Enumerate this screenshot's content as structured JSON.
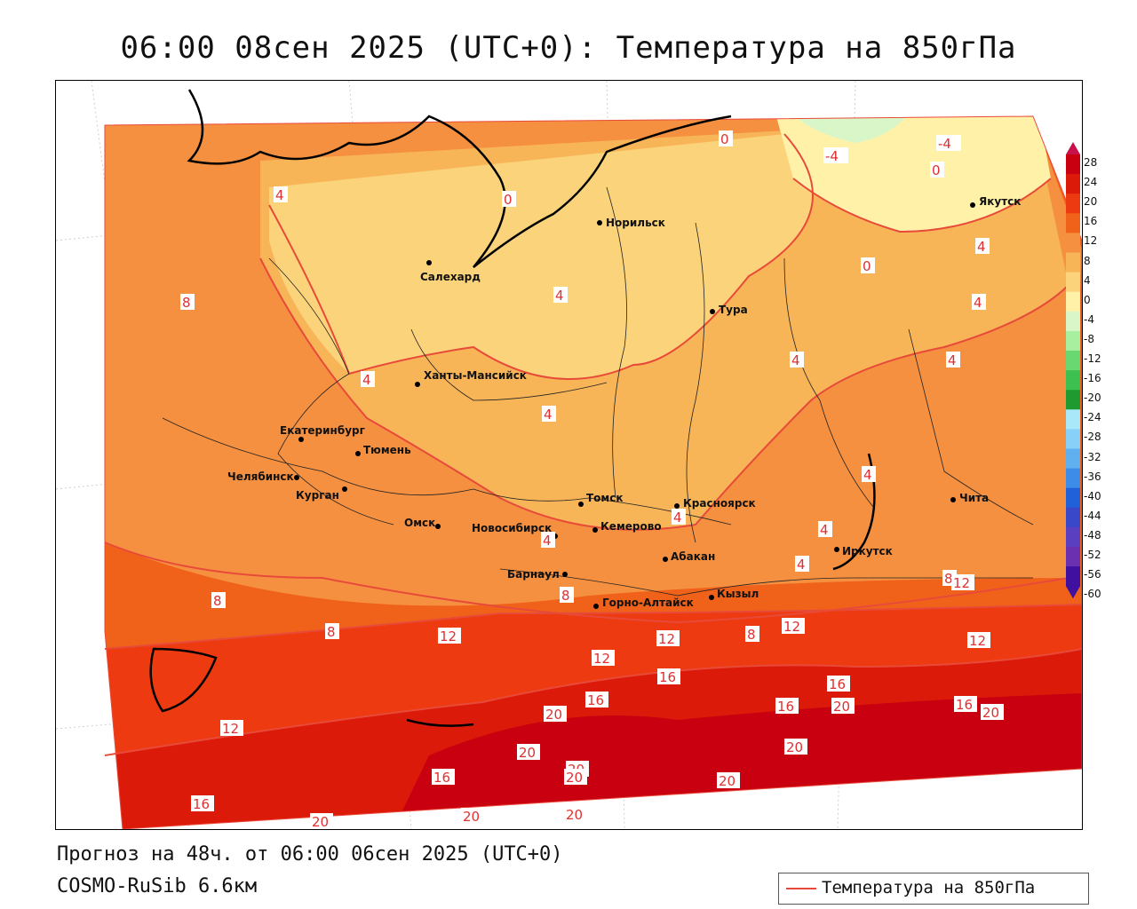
{
  "header": {
    "title": "06:00 08сен 2025 (UTC+0): Температура на 850гПа"
  },
  "footer": {
    "forecast": "Прогноз на 48ч. от 06:00 06сен 2025 (UTC+0)",
    "model": "COSMO-RuSib 6.6км"
  },
  "legend": {
    "label": "Температура на 850гПа",
    "line_color": "#e84a3a"
  },
  "colorbar": {
    "ticks": [
      "28",
      "24",
      "20",
      "16",
      "12",
      "8",
      "4",
      "0",
      "-4",
      "-8",
      "-12",
      "-16",
      "-20",
      "-24",
      "-28",
      "-32",
      "-36",
      "-40",
      "-44",
      "-48",
      "-52",
      "-56",
      "-60"
    ],
    "colors": [
      "#c8104b",
      "#c80010",
      "#dc1a0a",
      "#ee3a10",
      "#f0621a",
      "#f59040",
      "#f7b558",
      "#fbd37a",
      "#fff2a8",
      "#d9f6c8",
      "#a8f0a0",
      "#6ad870",
      "#3ec050",
      "#1e9a30",
      "#a8e8f8",
      "#88d0f8",
      "#60b0f0",
      "#3c8ce8",
      "#2060d8",
      "#3848c8",
      "#5a40c0",
      "#6a30b0",
      "#4010a0"
    ]
  },
  "cities": [
    {
      "name": "Норильск"
    },
    {
      "name": "Якутск"
    },
    {
      "name": "Салехард"
    },
    {
      "name": "Тура"
    },
    {
      "name": "Ханты-Мансийск"
    },
    {
      "name": "Екатеринбург"
    },
    {
      "name": "Тюмень"
    },
    {
      "name": "Челябинск"
    },
    {
      "name": "Курган"
    },
    {
      "name": "Омск"
    },
    {
      "name": "Новосибирск"
    },
    {
      "name": "Томск"
    },
    {
      "name": "Кемерово"
    },
    {
      "name": "Красноярск"
    },
    {
      "name": "Абакан"
    },
    {
      "name": "Барнаул"
    },
    {
      "name": "Горно-Алтайск"
    },
    {
      "name": "Кызыл"
    },
    {
      "name": "Иркутск"
    },
    {
      "name": "Чита"
    }
  ],
  "isotherm_labels": [
    "0",
    "0",
    "0",
    "0",
    "-4",
    "-4",
    "4",
    "4",
    "4",
    "4",
    "4",
    "4",
    "4",
    "4",
    "4",
    "4",
    "4",
    "4",
    "4",
    "8",
    "8",
    "8",
    "8",
    "8",
    "8",
    "12",
    "12",
    "12",
    "12",
    "12",
    "12",
    "12",
    "16",
    "16",
    "16",
    "16",
    "16",
    "16",
    "16",
    "20",
    "20",
    "20",
    "20",
    "20",
    "20",
    "20",
    "20",
    "20",
    "20",
    "20"
  ]
}
